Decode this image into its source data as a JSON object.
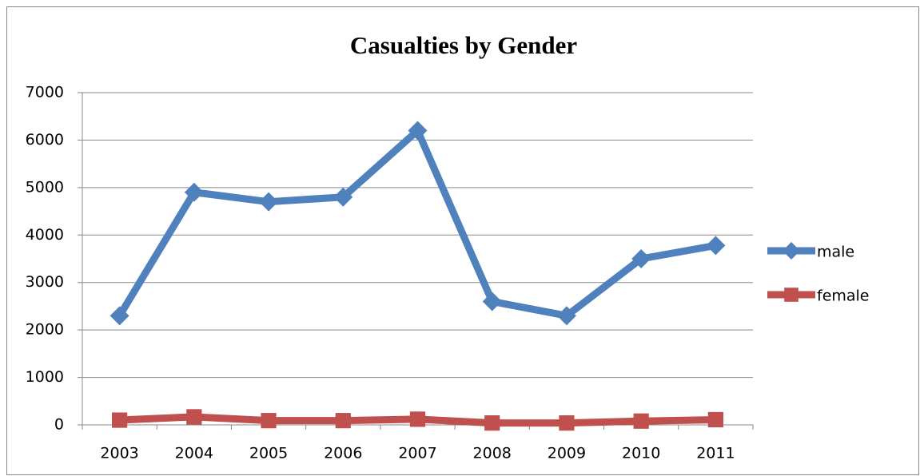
{
  "chart_data": {
    "type": "line",
    "title": "Casualties by Gender",
    "categories": [
      "2003",
      "2004",
      "2005",
      "2006",
      "2007",
      "2008",
      "2009",
      "2010",
      "2011"
    ],
    "series": [
      {
        "name": "male",
        "color": "#4f81bd",
        "marker": "diamond",
        "values": [
          2300,
          4900,
          4700,
          4800,
          6200,
          2600,
          2300,
          3500,
          3780
        ]
      },
      {
        "name": "female",
        "color": "#c0504d",
        "marker": "square",
        "values": [
          100,
          170,
          90,
          90,
          120,
          40,
          40,
          80,
          110
        ]
      }
    ],
    "ylim": [
      0,
      7000
    ],
    "yticks": [
      0,
      1000,
      2000,
      3000,
      4000,
      5000,
      6000,
      7000
    ],
    "grid": true,
    "legend": "right"
  }
}
